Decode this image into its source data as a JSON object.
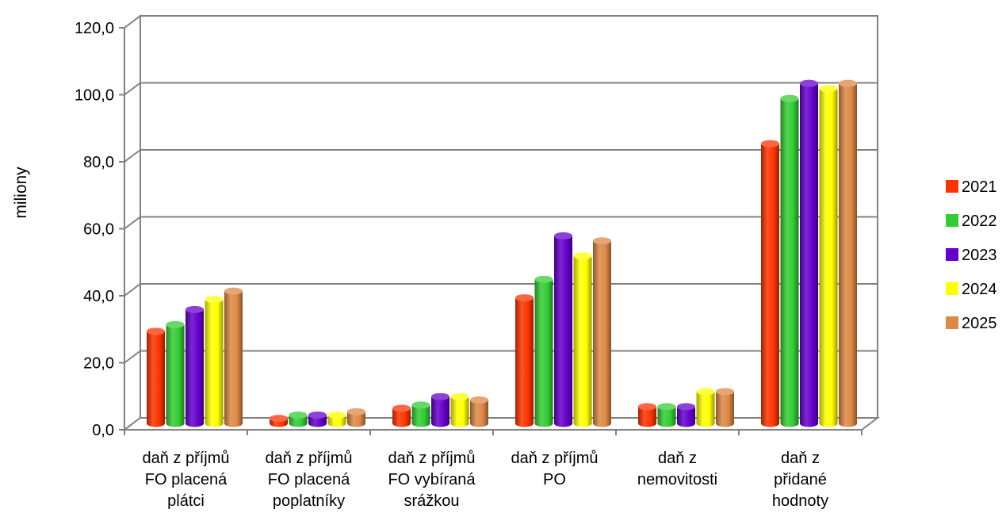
{
  "chart_data": {
    "type": "bar",
    "style": "3d-cylinder",
    "title": "",
    "xlabel": "",
    "ylabel": "miliony",
    "ylim": [
      0,
      120
    ],
    "yticks": [
      "0,0",
      "20,0",
      "40,0",
      "60,0",
      "80,0",
      "100,0",
      "120,0"
    ],
    "grid": true,
    "legend_position": "right",
    "categories": [
      [
        "daň z příjmů",
        "FO placená",
        "plátci"
      ],
      [
        "daň z příjmů",
        "FO placená",
        "poplatníky"
      ],
      [
        "daň z příjmů",
        "FO vybíraná",
        "srážkou"
      ],
      [
        "daň z příjmů",
        "PO"
      ],
      [
        "daň z",
        "nemovitosti"
      ],
      [
        "daň z",
        "přidané",
        "hodnoty"
      ]
    ],
    "series": [
      {
        "name": "2021",
        "color": "#ff3300",
        "values": [
          27.5,
          1.5,
          4.5,
          37.5,
          5.0,
          83.5
        ]
      },
      {
        "name": "2022",
        "color": "#33cc33",
        "values": [
          29.5,
          2.5,
          5.5,
          43.0,
          5.0,
          97.0
        ]
      },
      {
        "name": "2023",
        "color": "#6600cc",
        "values": [
          34.0,
          2.5,
          8.0,
          56.0,
          5.0,
          101.5
        ]
      },
      {
        "name": "2024",
        "color": "#ffff00",
        "values": [
          37.0,
          2.5,
          8.0,
          50.0,
          9.5,
          100.0
        ]
      },
      {
        "name": "2025",
        "color": "#dd8844",
        "values": [
          39.5,
          3.5,
          7.0,
          54.5,
          9.5,
          101.5
        ]
      }
    ]
  }
}
